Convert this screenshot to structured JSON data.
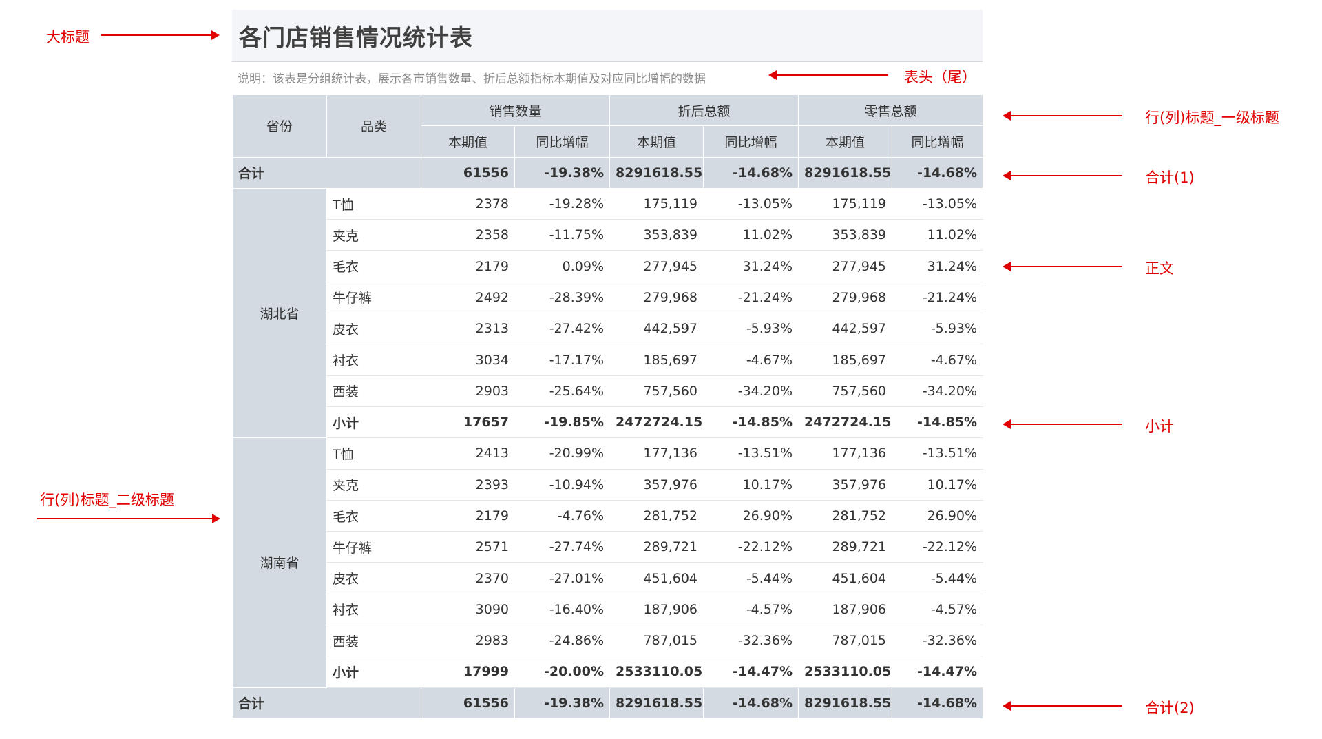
{
  "title": "各门店销售情况统计表",
  "description": "说明：该表是分组统计表，展示各市销售数量、折后总额指标本期值及对应同比增幅的数据",
  "header": {
    "province": "省份",
    "category": "品类",
    "groups": [
      "销售数量",
      "折后总额",
      "零售总额"
    ],
    "sub": [
      "本期值",
      "同比增幅",
      "本期值",
      "同比增幅",
      "本期值",
      "同比增幅"
    ]
  },
  "total_top": {
    "label": "合计",
    "values": [
      "61556",
      "-19.38%",
      "8291618.55",
      "-14.68%",
      "8291618.55",
      "-14.68%"
    ]
  },
  "provinces": [
    {
      "name": "湖北省",
      "rows": [
        {
          "cat": "T恤",
          "values": [
            "2378",
            "-19.28%",
            "175,119",
            "-13.05%",
            "175,119",
            "-13.05%"
          ]
        },
        {
          "cat": "夹克",
          "values": [
            "2358",
            "-11.75%",
            "353,839",
            "11.02%",
            "353,839",
            "11.02%"
          ]
        },
        {
          "cat": "毛衣",
          "values": [
            "2179",
            "0.09%",
            "277,945",
            "31.24%",
            "277,945",
            "31.24%"
          ]
        },
        {
          "cat": "牛仔裤",
          "values": [
            "2492",
            "-28.39%",
            "279,968",
            "-21.24%",
            "279,968",
            "-21.24%"
          ]
        },
        {
          "cat": "皮衣",
          "values": [
            "2313",
            "-27.42%",
            "442,597",
            "-5.93%",
            "442,597",
            "-5.93%"
          ]
        },
        {
          "cat": "衬衣",
          "values": [
            "3034",
            "-17.17%",
            "185,697",
            "-4.67%",
            "185,697",
            "-4.67%"
          ]
        },
        {
          "cat": "西装",
          "values": [
            "2903",
            "-25.64%",
            "757,560",
            "-34.20%",
            "757,560",
            "-34.20%"
          ]
        }
      ],
      "subtotal": {
        "label": "小计",
        "values": [
          "17657",
          "-19.85%",
          "2472724.15",
          "-14.85%",
          "2472724.15",
          "-14.85%"
        ]
      }
    },
    {
      "name": "湖南省",
      "rows": [
        {
          "cat": "T恤",
          "values": [
            "2413",
            "-20.99%",
            "177,136",
            "-13.51%",
            "177,136",
            "-13.51%"
          ]
        },
        {
          "cat": "夹克",
          "values": [
            "2393",
            "-10.94%",
            "357,976",
            "10.17%",
            "357,976",
            "10.17%"
          ]
        },
        {
          "cat": "毛衣",
          "values": [
            "2179",
            "-4.76%",
            "281,752",
            "26.90%",
            "281,752",
            "26.90%"
          ]
        },
        {
          "cat": "牛仔裤",
          "values": [
            "2571",
            "-27.74%",
            "289,721",
            "-22.12%",
            "289,721",
            "-22.12%"
          ]
        },
        {
          "cat": "皮衣",
          "values": [
            "2370",
            "-27.01%",
            "451,604",
            "-5.44%",
            "451,604",
            "-5.44%"
          ]
        },
        {
          "cat": "衬衣",
          "values": [
            "3090",
            "-16.40%",
            "187,906",
            "-4.57%",
            "187,906",
            "-4.57%"
          ]
        },
        {
          "cat": "西装",
          "values": [
            "2983",
            "-24.86%",
            "787,015",
            "-32.36%",
            "787,015",
            "-32.36%"
          ]
        }
      ],
      "subtotal": {
        "label": "小计",
        "values": [
          "17999",
          "-20.00%",
          "2533110.05",
          "-14.47%",
          "2533110.05",
          "-14.47%"
        ]
      }
    }
  ],
  "total_bottom": {
    "label": "合计",
    "values": [
      "61556",
      "-19.38%",
      "8291618.55",
      "-14.68%",
      "8291618.55",
      "-14.68%"
    ]
  },
  "annotations": {
    "big_title": "大标题",
    "header_tail": "表头（尾）",
    "row_col_title_1": "行(列)标题_一级标题",
    "total_1": "合计(1)",
    "body": "正文",
    "subtotal": "小计",
    "row_col_title_2": "行(列)标题_二级标题",
    "total_2": "合计(2)"
  },
  "colors": {
    "annotation": "#e00000",
    "header_bg": "#d3dae2",
    "title_bg": "#f3f5f8"
  }
}
